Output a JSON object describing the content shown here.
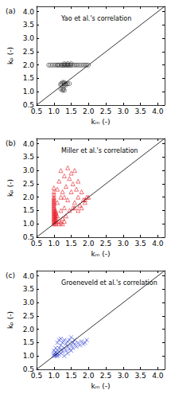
{
  "chart_data": [
    {
      "type": "scatter",
      "annotation": "(a)",
      "title": "Yao et al.'s correlation",
      "x_label": "kₘ (-)",
      "y_label": "kₚ (-)",
      "xlim": [
        0.5,
        4.2
      ],
      "ylim": [
        0.5,
        4.2
      ],
      "xticks": [
        0.5,
        {
          "value": 1,
          "label": "1.0"
        },
        1.5,
        {
          "value": 2,
          "label": "2.0"
        },
        2.5,
        {
          "value": 3,
          "label": "3.0"
        },
        3.5,
        {
          "value": 4,
          "label": "4.0"
        }
      ],
      "yticks": [
        0.5,
        {
          "value": 1,
          "label": "1.0"
        },
        1.5,
        {
          "value": 2,
          "label": "2.0"
        },
        2.5,
        {
          "value": 3,
          "label": "3.0"
        },
        3.5,
        {
          "value": 4,
          "label": "4.0"
        }
      ],
      "grid": false,
      "series": [
        {
          "type": "scatter",
          "marker": "circle",
          "color": "#333333",
          "x": [
            0.85,
            0.9,
            0.95,
            1.0,
            1.05,
            1.1,
            1.12,
            1.15,
            1.2,
            1.22,
            1.25,
            1.28,
            1.3,
            1.32,
            1.35,
            1.38,
            1.4,
            1.42,
            1.45,
            1.48,
            1.5,
            1.55,
            1.6,
            1.65,
            1.7,
            1.75,
            1.8,
            1.85,
            1.9,
            1.95,
            2.0,
            1.3,
            1.4,
            1.5,
            1.2,
            1.25,
            1.3,
            1.35,
            1.4,
            1.45,
            1.25,
            1.3,
            1.2,
            1.3,
            1.35,
            1.2,
            1.25,
            1.28,
            1.25,
            1.3
          ],
          "values": [
            2.0,
            2.0,
            2.0,
            2.0,
            2.0,
            2.0,
            2.0,
            2.0,
            2.0,
            2.0,
            2.0,
            2.0,
            2.0,
            2.0,
            2.0,
            2.0,
            2.0,
            2.0,
            2.0,
            2.0,
            2.0,
            2.0,
            2.0,
            2.0,
            2.0,
            2.0,
            2.0,
            2.0,
            2.0,
            2.0,
            2.0,
            2.05,
            2.05,
            2.05,
            1.3,
            1.3,
            1.3,
            1.3,
            1.3,
            1.3,
            1.35,
            1.35,
            1.25,
            1.25,
            1.25,
            1.1,
            1.1,
            1.1,
            1.05,
            1.05
          ]
        },
        {
          "type": "line",
          "color": "#000000",
          "x": [
            0.5,
            4.2
          ],
          "values": [
            0.5,
            4.2
          ]
        }
      ]
    },
    {
      "type": "scatter",
      "annotation": "(b)",
      "title": "Miller et al.'s correlation",
      "x_label": "kₘ (-)",
      "y_label": "kₚ (-)",
      "xlim": [
        0.5,
        4.2
      ],
      "ylim": [
        0.5,
        4.2
      ],
      "xticks": [
        0.5,
        {
          "value": 1,
          "label": "1.0"
        },
        1.5,
        {
          "value": 2,
          "label": "2.0"
        },
        2.5,
        {
          "value": 3,
          "label": "3.0"
        },
        3.5,
        {
          "value": 4,
          "label": "4.0"
        }
      ],
      "yticks": [
        0.5,
        {
          "value": 1,
          "label": "1.0"
        },
        1.5,
        {
          "value": 2,
          "label": "2.0"
        },
        2.5,
        {
          "value": 3,
          "label": "3.0"
        },
        3.5,
        {
          "value": 4,
          "label": "4.0"
        }
      ],
      "grid": false,
      "series": [
        {
          "type": "scatter",
          "marker": "triangle",
          "color": "#e8202a",
          "x": [
            1.0,
            1.0,
            1.0,
            1.0,
            1.0,
            1.0,
            1.0,
            1.0,
            1.0,
            1.0,
            1.0,
            1.0,
            1.0,
            1.0,
            1.0,
            1.0,
            1.0,
            1.0,
            1.0,
            1.0,
            1.0,
            1.0,
            1.0,
            1.0,
            1.05,
            1.05,
            1.05,
            1.05,
            1.05,
            1.05,
            1.05,
            1.05,
            1.05,
            1.05,
            1.05,
            1.1,
            1.15,
            1.2,
            1.25,
            1.3,
            1.35,
            1.4,
            1.4,
            1.45,
            1.5,
            1.5,
            1.55,
            1.6,
            1.6,
            1.65,
            1.7,
            1.7,
            1.75,
            1.8,
            1.85,
            1.9,
            1.95,
            1.3,
            1.2,
            1.1,
            1.15,
            1.25,
            1.35,
            1.45,
            1.55,
            1.2,
            1.3,
            1.1,
            1.6,
            1.7,
            1.8,
            1.9,
            2.0,
            1.15,
            1.2,
            1.25,
            1.3
          ],
          "values": [
            1.0,
            1.05,
            1.1,
            1.15,
            1.2,
            1.25,
            1.3,
            1.35,
            1.4,
            1.45,
            1.5,
            1.55,
            1.6,
            1.65,
            1.7,
            1.75,
            1.8,
            1.85,
            1.9,
            1.95,
            2.0,
            2.1,
            2.2,
            2.35,
            1.0,
            1.05,
            1.1,
            1.15,
            1.2,
            1.25,
            1.3,
            1.35,
            1.4,
            1.45,
            1.5,
            2.3,
            2.6,
            3.0,
            2.2,
            2.8,
            2.4,
            3.1,
            1.9,
            2.7,
            2.2,
            2.9,
            2.5,
            1.8,
            3.0,
            2.3,
            2.0,
            2.6,
            1.7,
            2.2,
            1.9,
            1.8,
            2.0,
            1.6,
            1.5,
            1.3,
            1.1,
            1.2,
            1.3,
            1.5,
            1.6,
            2.0,
            2.0,
            1.8,
            1.6,
            1.5,
            1.6,
            1.9,
            2.0,
            1.0,
            1.05,
            1.0,
            1.1
          ]
        },
        {
          "type": "line",
          "color": "#000000",
          "x": [
            0.5,
            4.2
          ],
          "values": [
            0.5,
            4.2
          ]
        }
      ]
    },
    {
      "type": "scatter",
      "annotation": "(c)",
      "title": "Groeneveld et al.'s correlation",
      "x_label": "kₘ (-)",
      "y_label": "kₚ (-)",
      "xlim": [
        0.5,
        4.2
      ],
      "ylim": [
        0.5,
        4.2
      ],
      "xticks": [
        0.5,
        {
          "value": 1,
          "label": "1.0"
        },
        1.5,
        {
          "value": 2,
          "label": "2.0"
        },
        2.5,
        {
          "value": 3,
          "label": "3.0"
        },
        3.5,
        {
          "value": 4,
          "label": "4.0"
        }
      ],
      "yticks": [
        0.5,
        {
          "value": 1,
          "label": "1.0"
        },
        1.5,
        {
          "value": 2,
          "label": "2.0"
        },
        2.5,
        {
          "value": 3,
          "label": "3.0"
        },
        3.5,
        {
          "value": 4,
          "label": "4.0"
        }
      ],
      "grid": false,
      "series": [
        {
          "type": "scatter",
          "marker": "x",
          "color": "#2c3fd1",
          "x": [
            1.0,
            1.0,
            1.02,
            1.05,
            1.05,
            1.08,
            1.1,
            1.1,
            1.12,
            1.15,
            1.15,
            1.2,
            1.2,
            1.22,
            1.25,
            1.25,
            1.3,
            1.3,
            1.35,
            1.35,
            1.4,
            1.4,
            1.45,
            1.45,
            1.5,
            1.5,
            1.55,
            1.55,
            1.6,
            1.6,
            1.65,
            1.7,
            1.75,
            1.8,
            1.85,
            1.9,
            1.95,
            1.0,
            1.05,
            1.1,
            1.15,
            1.2,
            1.3,
            1.4,
            1.5
          ],
          "values": [
            1.0,
            1.05,
            1.1,
            1.0,
            1.15,
            1.05,
            1.1,
            1.0,
            1.2,
            1.05,
            1.3,
            1.1,
            1.4,
            1.25,
            1.5,
            1.15,
            1.3,
            1.6,
            1.2,
            1.45,
            1.35,
            1.55,
            1.25,
            1.6,
            1.4,
            1.7,
            1.3,
            1.5,
            1.45,
            1.6,
            1.35,
            1.5,
            1.4,
            1.55,
            1.45,
            1.5,
            1.6,
            1.2,
            1.3,
            1.5,
            1.6,
            1.65,
            1.0,
            1.1,
            1.2
          ]
        },
        {
          "type": "line",
          "color": "#000000",
          "x": [
            0.5,
            4.2
          ],
          "values": [
            0.5,
            4.2
          ]
        }
      ]
    }
  ]
}
